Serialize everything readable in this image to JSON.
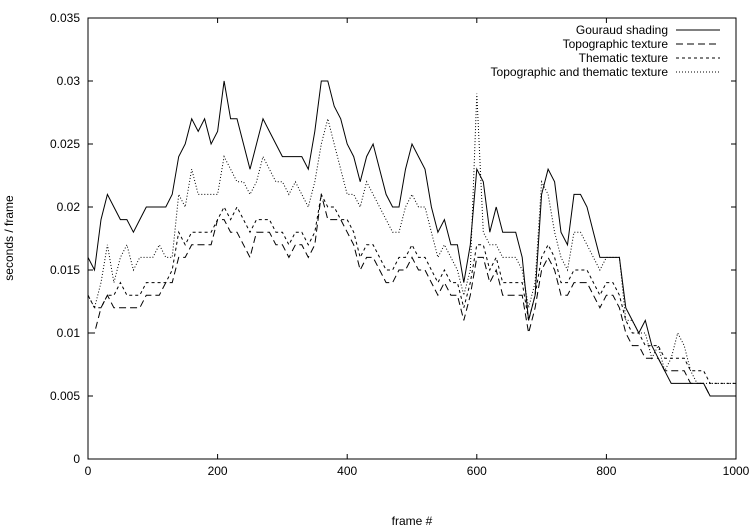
{
  "chart_data": {
    "type": "line",
    "title": "",
    "xlabel": "frame #",
    "ylabel": "seconds / frame",
    "xlim": [
      0,
      1000
    ],
    "ylim": [
      0,
      0.035
    ],
    "xticks": [
      0,
      200,
      400,
      600,
      800,
      1000
    ],
    "xtick_labels": [
      "0",
      "200",
      "400",
      "600",
      "800",
      "1000"
    ],
    "yticks": [
      0,
      0.005,
      0.01,
      0.015,
      0.02,
      0.025,
      0.03,
      0.035
    ],
    "ytick_labels": [
      "0",
      "0.005",
      "0.01",
      "0.015",
      "0.02",
      "0.025",
      "0.03",
      "0.035"
    ],
    "grid": false,
    "legend_position": "top-right",
    "x": [
      0,
      10,
      20,
      30,
      40,
      50,
      60,
      70,
      80,
      90,
      100,
      110,
      120,
      130,
      140,
      150,
      160,
      170,
      180,
      190,
      200,
      210,
      220,
      230,
      240,
      250,
      260,
      270,
      280,
      290,
      300,
      310,
      320,
      330,
      340,
      350,
      360,
      370,
      380,
      390,
      400,
      410,
      420,
      430,
      440,
      450,
      460,
      470,
      480,
      490,
      500,
      510,
      520,
      530,
      540,
      550,
      560,
      570,
      580,
      590,
      600,
      610,
      620,
      630,
      640,
      650,
      660,
      670,
      680,
      690,
      700,
      710,
      720,
      730,
      740,
      750,
      760,
      770,
      780,
      790,
      800,
      810,
      820,
      830,
      840,
      850,
      860,
      870,
      880,
      890,
      900,
      910,
      920,
      930,
      940,
      950,
      960,
      970,
      980,
      990,
      1000
    ],
    "series": [
      {
        "name": "Gouraud shading",
        "dash": "none",
        "values": [
          0.016,
          0.015,
          0.019,
          0.021,
          0.02,
          0.019,
          0.019,
          0.018,
          0.019,
          0.02,
          0.02,
          0.02,
          0.02,
          0.021,
          0.024,
          0.025,
          0.027,
          0.026,
          0.027,
          0.025,
          0.026,
          0.03,
          0.027,
          0.027,
          0.025,
          0.023,
          0.025,
          0.027,
          0.026,
          0.025,
          0.024,
          0.024,
          0.024,
          0.024,
          0.023,
          0.026,
          0.03,
          0.03,
          0.028,
          0.027,
          0.025,
          0.024,
          0.022,
          0.024,
          0.025,
          0.023,
          0.021,
          0.02,
          0.02,
          0.023,
          0.025,
          0.024,
          0.023,
          0.02,
          0.018,
          0.019,
          0.017,
          0.017,
          0.014,
          0.017,
          0.023,
          0.022,
          0.018,
          0.02,
          0.018,
          0.018,
          0.018,
          0.016,
          0.011,
          0.013,
          0.021,
          0.023,
          0.022,
          0.018,
          0.017,
          0.021,
          0.021,
          0.02,
          0.018,
          0.016,
          0.016,
          0.016,
          0.016,
          0.012,
          0.011,
          0.01,
          0.011,
          0.009,
          0.008,
          0.007,
          0.006,
          0.006,
          0.006,
          0.006,
          0.006,
          0.006,
          0.005,
          0.005,
          0.005,
          0.005,
          0.005
        ]
      },
      {
        "name": "Topographic texture",
        "dash": "7,4",
        "values": [
          0.01,
          0.01,
          0.012,
          0.013,
          0.012,
          0.012,
          0.012,
          0.012,
          0.012,
          0.013,
          0.013,
          0.013,
          0.014,
          0.014,
          0.016,
          0.016,
          0.017,
          0.017,
          0.017,
          0.017,
          0.019,
          0.019,
          0.018,
          0.018,
          0.017,
          0.016,
          0.018,
          0.018,
          0.018,
          0.017,
          0.017,
          0.016,
          0.017,
          0.017,
          0.016,
          0.017,
          0.021,
          0.019,
          0.019,
          0.019,
          0.018,
          0.017,
          0.015,
          0.016,
          0.016,
          0.015,
          0.014,
          0.014,
          0.015,
          0.015,
          0.016,
          0.015,
          0.015,
          0.014,
          0.013,
          0.014,
          0.013,
          0.013,
          0.011,
          0.013,
          0.016,
          0.016,
          0.014,
          0.015,
          0.013,
          0.013,
          0.013,
          0.013,
          0.01,
          0.012,
          0.015,
          0.016,
          0.015,
          0.013,
          0.013,
          0.014,
          0.014,
          0.014,
          0.013,
          0.012,
          0.013,
          0.013,
          0.012,
          0.01,
          0.009,
          0.009,
          0.008,
          0.008,
          0.008,
          0.007,
          0.007,
          0.007,
          0.007,
          0.006,
          0.006,
          0.006,
          0.005,
          0.005,
          0.005,
          0.005,
          0.005
        ]
      },
      {
        "name": "Thematic texture",
        "dash": "3,3",
        "values": [
          0.013,
          0.012,
          0.012,
          0.013,
          0.013,
          0.014,
          0.013,
          0.013,
          0.013,
          0.014,
          0.014,
          0.014,
          0.014,
          0.015,
          0.018,
          0.017,
          0.018,
          0.018,
          0.018,
          0.018,
          0.019,
          0.02,
          0.019,
          0.02,
          0.019,
          0.018,
          0.019,
          0.019,
          0.019,
          0.018,
          0.018,
          0.017,
          0.018,
          0.018,
          0.017,
          0.018,
          0.021,
          0.02,
          0.02,
          0.019,
          0.019,
          0.018,
          0.016,
          0.017,
          0.017,
          0.016,
          0.015,
          0.015,
          0.016,
          0.016,
          0.017,
          0.016,
          0.016,
          0.015,
          0.014,
          0.015,
          0.014,
          0.014,
          0.012,
          0.014,
          0.017,
          0.017,
          0.015,
          0.016,
          0.014,
          0.014,
          0.014,
          0.014,
          0.011,
          0.013,
          0.016,
          0.017,
          0.016,
          0.014,
          0.014,
          0.015,
          0.015,
          0.015,
          0.014,
          0.013,
          0.014,
          0.014,
          0.013,
          0.011,
          0.01,
          0.01,
          0.009,
          0.009,
          0.009,
          0.008,
          0.008,
          0.008,
          0.008,
          0.007,
          0.007,
          0.007,
          0.006,
          0.006,
          0.006,
          0.006,
          0.006
        ]
      },
      {
        "name": "Topographic and thematic texture",
        "dash": "1,2",
        "values": [
          0.013,
          0.012,
          0.014,
          0.017,
          0.014,
          0.016,
          0.017,
          0.015,
          0.016,
          0.016,
          0.016,
          0.017,
          0.016,
          0.016,
          0.021,
          0.02,
          0.023,
          0.021,
          0.021,
          0.021,
          0.021,
          0.024,
          0.023,
          0.022,
          0.022,
          0.021,
          0.022,
          0.024,
          0.023,
          0.022,
          0.022,
          0.021,
          0.022,
          0.021,
          0.02,
          0.022,
          0.025,
          0.027,
          0.025,
          0.023,
          0.021,
          0.021,
          0.02,
          0.022,
          0.021,
          0.02,
          0.019,
          0.018,
          0.018,
          0.02,
          0.021,
          0.02,
          0.02,
          0.018,
          0.016,
          0.017,
          0.016,
          0.015,
          0.013,
          0.015,
          0.029,
          0.018,
          0.017,
          0.017,
          0.016,
          0.016,
          0.016,
          0.015,
          0.012,
          0.014,
          0.022,
          0.021,
          0.018,
          0.016,
          0.015,
          0.018,
          0.018,
          0.017,
          0.016,
          0.015,
          0.016,
          0.016,
          0.016,
          0.011,
          0.011,
          0.01,
          0.01,
          0.008,
          0.009,
          0.007,
          0.008,
          0.01,
          0.009,
          0.007,
          0.006,
          0.006,
          0.006,
          0.006,
          0.006,
          0.006,
          0.006
        ]
      }
    ]
  }
}
